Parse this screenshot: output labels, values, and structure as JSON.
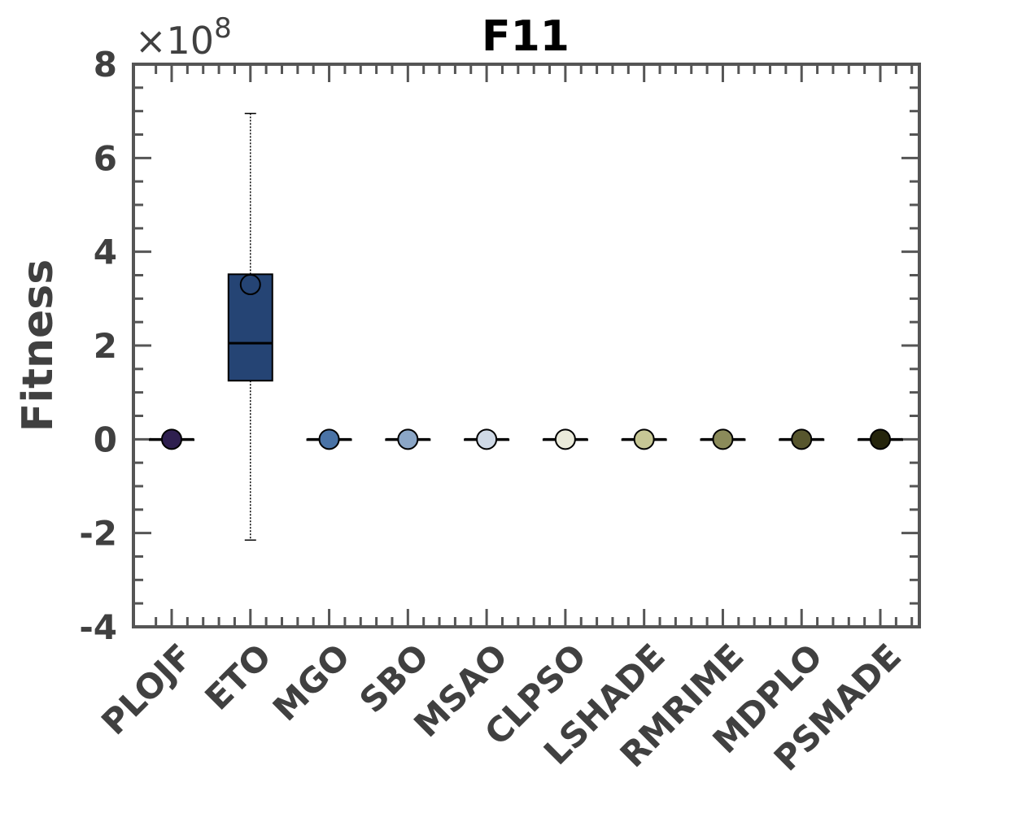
{
  "chart_data": {
    "type": "box",
    "title": "F11",
    "xlabel": "",
    "ylabel": "Fitness",
    "y_multiplier": "×10⁸",
    "y_multiplier_parts": {
      "base": "×10",
      "exponent": "8"
    },
    "ylim": [
      -4,
      8
    ],
    "y_ticks": [
      -4,
      -2,
      0,
      2,
      4,
      6,
      8
    ],
    "y_tick_labels": [
      "-4",
      "-2",
      "0",
      "2",
      "4",
      "6",
      "8"
    ],
    "grid": false,
    "legend": "none",
    "categories": [
      "PLOJF",
      "ETO",
      "MGO",
      "SBO",
      "MSAO",
      "CLPSO",
      "LSHADE",
      "RMRIME",
      "MDPLO",
      "PSMADE"
    ],
    "series": [
      {
        "category": "PLOJF",
        "whisker_low": 0,
        "q1": 0,
        "median": 0,
        "q3": 0,
        "whisker_high": 0,
        "mean": 0,
        "color": "#2e1f4f"
      },
      {
        "category": "ETO",
        "whisker_low": -2.15,
        "q1": 1.25,
        "median": 2.05,
        "q3": 3.52,
        "whisker_high": 6.95,
        "mean": 3.3,
        "color": "#254474"
      },
      {
        "category": "MGO",
        "whisker_low": 0,
        "q1": 0,
        "median": 0,
        "q3": 0,
        "whisker_high": 0,
        "mean": 0,
        "color": "#4a73a6"
      },
      {
        "category": "SBO",
        "whisker_low": 0,
        "q1": 0,
        "median": 0,
        "q3": 0,
        "whisker_high": 0,
        "mean": 0,
        "color": "#8ba6c6"
      },
      {
        "category": "MSAO",
        "whisker_low": 0,
        "q1": 0,
        "median": 0,
        "q3": 0,
        "whisker_high": 0,
        "mean": 0,
        "color": "#cfd9e6"
      },
      {
        "category": "CLPSO",
        "whisker_low": 0,
        "q1": 0,
        "median": 0,
        "q3": 0,
        "whisker_high": 0,
        "mean": 0,
        "color": "#ebebdb"
      },
      {
        "category": "LSHADE",
        "whisker_low": 0,
        "q1": 0,
        "median": 0,
        "q3": 0,
        "whisker_high": 0,
        "mean": 0,
        "color": "#c7c795"
      },
      {
        "category": "RMRIME",
        "whisker_low": 0,
        "q1": 0,
        "median": 0,
        "q3": 0,
        "whisker_high": 0,
        "mean": 0,
        "color": "#8b8b5a"
      },
      {
        "category": "MDPLO",
        "whisker_low": 0,
        "q1": 0,
        "median": 0,
        "q3": 0,
        "whisker_high": 0,
        "mean": 0,
        "color": "#57562d"
      },
      {
        "category": "PSMADE",
        "whisker_low": 0,
        "q1": 0,
        "median": 0,
        "q3": 0,
        "whisker_high": 0,
        "mean": 0,
        "color": "#25250c"
      }
    ]
  }
}
